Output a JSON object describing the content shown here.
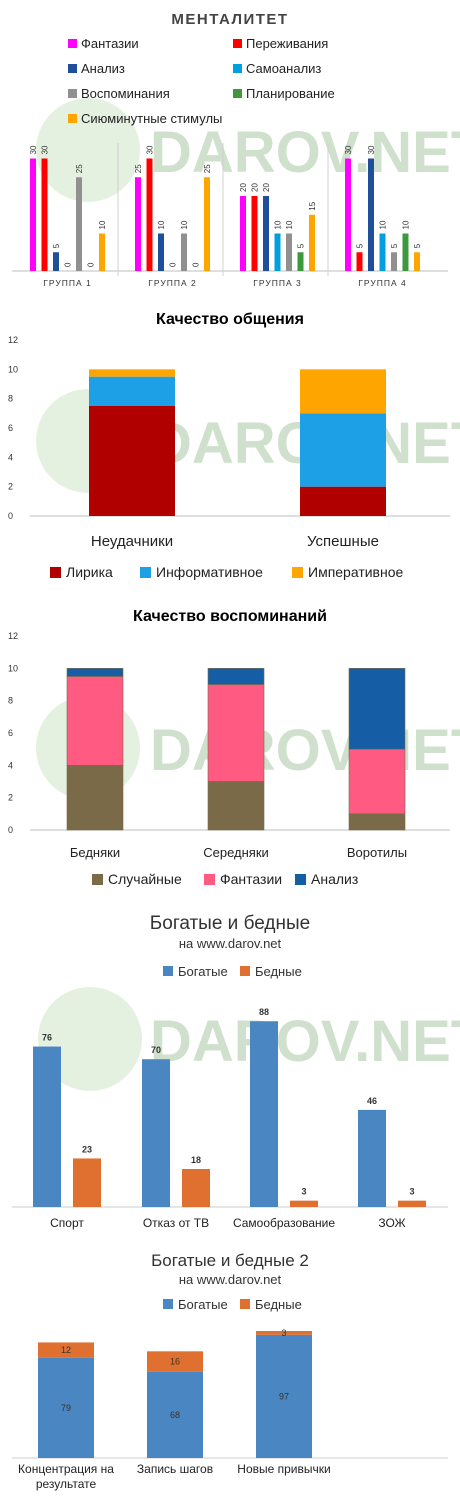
{
  "watermark": "DAROV.NET",
  "charts": [
    {
      "type": "bar",
      "title": "МЕНТАЛИТЕТ",
      "legend": [
        "Фантазии",
        "Переживания",
        "Анализ",
        "Самоанализ",
        "Воспоминания",
        "Планирование",
        "Сиюминутные стимулы"
      ],
      "colors": [
        "#ff00ff",
        "#ff0000",
        "#1f4e9a",
        "#00a0e0",
        "#909090",
        "#3c9a3c",
        "#ffa500"
      ],
      "categories": [
        "ГРУППА 1",
        "ГРУППА 2",
        "ГРУППА 3",
        "ГРУППА 4"
      ],
      "series": [
        {
          "name": "Фантазии",
          "values": [
            30,
            25,
            20,
            30
          ]
        },
        {
          "name": "Переживания",
          "values": [
            30,
            30,
            20,
            5
          ]
        },
        {
          "name": "Анализ",
          "values": [
            5,
            10,
            20,
            30
          ]
        },
        {
          "name": "Самоанализ",
          "values": [
            0,
            0,
            10,
            10
          ]
        },
        {
          "name": "Воспоминания",
          "values": [
            25,
            10,
            10,
            5
          ]
        },
        {
          "name": "Планирование",
          "values": [
            0,
            0,
            5,
            10
          ]
        },
        {
          "name": "Сиюминутные стимулы",
          "values": [
            10,
            25,
            15,
            5
          ]
        }
      ],
      "ylim": [
        0,
        32
      ]
    },
    {
      "type": "bar",
      "stacked": true,
      "title": "Качество общения",
      "categories": [
        "Неудачники",
        "Успешные"
      ],
      "series": [
        {
          "name": "Лирика",
          "values": [
            7.5,
            2
          ],
          "color": "#b00000"
        },
        {
          "name": "Информативное",
          "values": [
            2,
            5
          ],
          "color": "#1ea0e6"
        },
        {
          "name": "Императивное",
          "values": [
            0.5,
            3
          ],
          "color": "#ffa500"
        }
      ],
      "yticks": [
        "0",
        "2",
        "4",
        "6",
        "8",
        "10",
        "12"
      ],
      "ylim": [
        0,
        12
      ]
    },
    {
      "type": "bar",
      "stacked": true,
      "title": "Качество воспоминаний",
      "categories": [
        "Бедняки",
        "Середняки",
        "Воротилы"
      ],
      "series": [
        {
          "name": "Случайные",
          "values": [
            4,
            3,
            1
          ],
          "color": "#7a6a47"
        },
        {
          "name": "Фантазии",
          "values": [
            5.5,
            6,
            4
          ],
          "color": "#ff5a82"
        },
        {
          "name": "Анализ",
          "values": [
            0.5,
            1,
            5
          ],
          "color": "#155ea5"
        }
      ],
      "yticks": [
        "0",
        "2",
        "4",
        "6",
        "8",
        "10",
        "12"
      ],
      "ylim": [
        0,
        12
      ]
    },
    {
      "type": "bar",
      "title": "Богатые и бедные",
      "subtitle": "на www.darov.net",
      "categories": [
        "Спорт",
        "Отказ от ТВ",
        "Самообразование",
        "ЗОЖ"
      ],
      "series": [
        {
          "name": "Богатые",
          "values": [
            76,
            70,
            88,
            46
          ],
          "color": "#4a86c2"
        },
        {
          "name": "Бедные",
          "values": [
            23,
            18,
            3,
            3
          ],
          "color": "#e07030"
        }
      ],
      "ylim": [
        0,
        90
      ]
    },
    {
      "type": "bar",
      "stacked": true,
      "title": "Богатые и бедные 2",
      "subtitle": "на www.darov.net",
      "categories": [
        "Концентрация на результате",
        "Запись шагов",
        "Новые привычки"
      ],
      "series": [
        {
          "name": "Богатые",
          "values": [
            79,
            68,
            97
          ],
          "color": "#4a86c2"
        },
        {
          "name": "Бедные",
          "values": [
            12,
            16,
            3
          ],
          "color": "#e07030"
        }
      ],
      "ylim": [
        0,
        100
      ]
    }
  ]
}
